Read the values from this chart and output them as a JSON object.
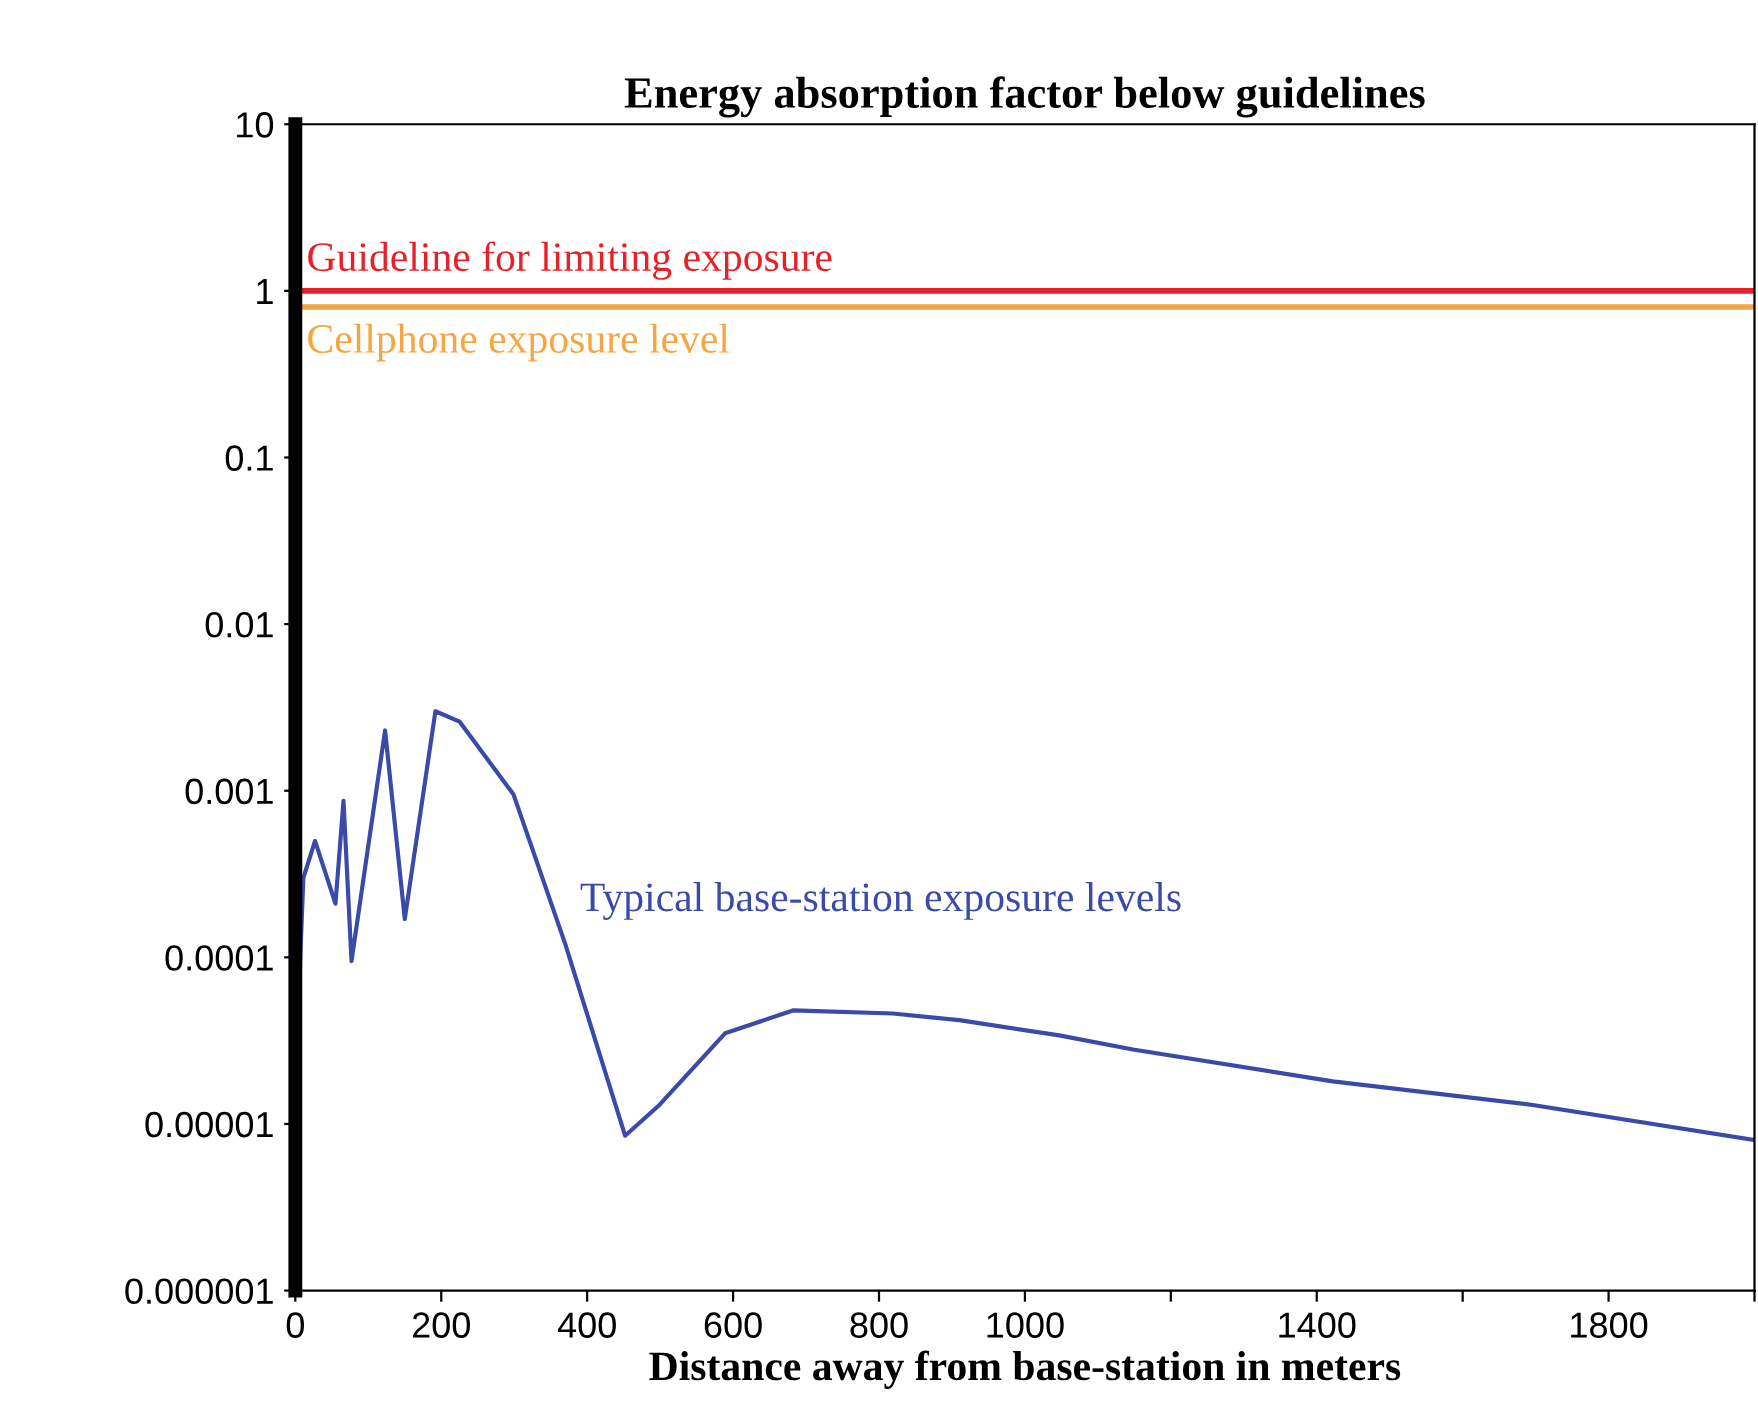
{
  "chart_data": {
    "type": "line",
    "title": "Energy absorption factor below guidelines",
    "xlabel": "Distance away from base-station in meters",
    "log": "y",
    "xlim": [
      0,
      2000
    ],
    "ylim": [
      1e-06,
      10
    ],
    "xticks": [
      0,
      200,
      400,
      600,
      800,
      1000,
      {
        "value": 1200,
        "label": null
      },
      1400,
      {
        "value": 1600,
        "label": null
      },
      1800,
      {
        "value": 2000,
        "label": null
      }
    ],
    "yticks": [
      {
        "value": 1e-06,
        "label": "0.000001"
      },
      {
        "value": 1e-05,
        "label": "0.00001"
      },
      {
        "value": 0.0001,
        "label": "0.0001"
      },
      0.001,
      0.01,
      0.1,
      1,
      10
    ],
    "grid": false,
    "legend": false,
    "marker": "none",
    "line_style": "solid",
    "series": [
      {
        "name": "Typical base-station exposure levels",
        "color": "#3a4aa8",
        "x": [
          0,
          11,
          27,
          55,
          66,
          77,
          123,
          150,
          192,
          225,
          299,
          370,
          452,
          499,
          589,
          682,
          819,
          910,
          1047,
          1148,
          1422,
          1696,
          2000
        ],
        "values": [
          1.8e-05,
          0.0003,
          0.0005,
          0.00021,
          0.00087,
          9.5e-05,
          0.0023,
          0.00017,
          0.003,
          0.0026,
          0.00095,
          0.00012,
          8.5e-06,
          1.3e-05,
          3.5e-05,
          4.8e-05,
          4.6e-05,
          4.2e-05,
          3.4e-05,
          2.8e-05,
          1.8e-05,
          1.3e-05,
          8e-06
        ]
      }
    ],
    "ref_lines": [
      {
        "axis": "y",
        "value": 1,
        "label": "Guideline for limiting exposure",
        "color": "#e8202a",
        "line_style": "solid"
      },
      {
        "axis": "y",
        "value": 0.8,
        "label": "Cellphone exposure level",
        "color": "#f5a640",
        "line_style": "solid"
      }
    ]
  }
}
